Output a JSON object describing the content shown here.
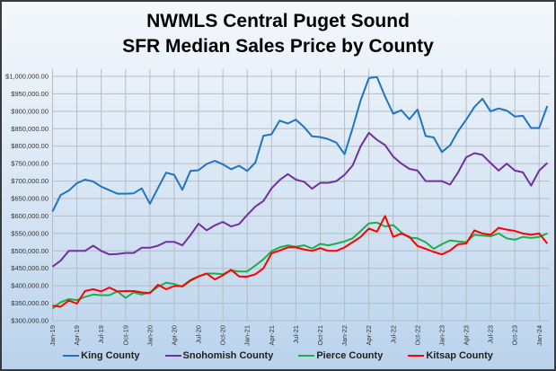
{
  "chart_data": {
    "type": "line",
    "title": [
      "NWMLS Central Puget Sound",
      "SFR Median Sales Price by County"
    ],
    "xlabel": "",
    "ylabel": "",
    "ylim": [
      300000,
      1000000
    ],
    "y_step": 50000,
    "y_tick_labels": [
      "$300,000.00",
      "$350,000.00",
      "$400,000.00",
      "$450,000.00",
      "$500,000.00",
      "$550,000.00",
      "$600,000.00",
      "$650,000.00",
      "$700,000.00",
      "$750,000.00",
      "$800,000.00",
      "$850,000.00",
      "$900,000.00",
      "$950,000.00",
      "$1,000,000.00"
    ],
    "x_start": "Jan-19",
    "x_end": "Feb-24",
    "x_tick_labels": [
      "Jan-19",
      "Apr-19",
      "Jul-19",
      "Oct-19",
      "Jan-20",
      "Apr-20",
      "Jul-20",
      "Oct-20",
      "Jan-21",
      "Apr-21",
      "Jul-21",
      "Oct-21",
      "Jan-22",
      "Apr-22",
      "Jul-22",
      "Oct-22",
      "Jan-23",
      "Apr-23",
      "Jul-23",
      "Oct-23",
      "Jan-24"
    ],
    "grid": true,
    "legend_position": "bottom",
    "series": [
      {
        "name": "King County",
        "color": "#1f74c4",
        "values": [
          613000,
          660000,
          673000,
          694000,
          704000,
          699000,
          684000,
          674000,
          664000,
          664000,
          665000,
          679000,
          635000,
          680000,
          724000,
          718000,
          675000,
          729000,
          731000,
          749000,
          758000,
          748000,
          734000,
          744000,
          729000,
          753000,
          830000,
          834000,
          873000,
          865000,
          876000,
          855000,
          828000,
          826000,
          820000,
          810000,
          777000,
          852000,
          932000,
          995000,
          998000,
          942000,
          893000,
          903000,
          877000,
          905000,
          829000,
          825000,
          783000,
          802000,
          843000,
          876000,
          912000,
          936000,
          900000,
          908000,
          902000,
          885000,
          887000,
          852000,
          852000,
          915000
        ]
      },
      {
        "name": "Snohomish County",
        "color": "#7030a0",
        "values": [
          455000,
          472000,
          500000,
          500000,
          500000,
          515000,
          500000,
          490000,
          491000,
          494000,
          494000,
          509000,
          509000,
          515000,
          526000,
          526000,
          516000,
          545000,
          578000,
          559000,
          573000,
          583000,
          570000,
          577000,
          603000,
          627000,
          643000,
          679000,
          703000,
          720000,
          704000,
          698000,
          678000,
          695000,
          695000,
          700000,
          718000,
          745000,
          800000,
          838000,
          818000,
          803000,
          770000,
          750000,
          735000,
          730000,
          700000,
          700000,
          700000,
          690000,
          725000,
          768000,
          780000,
          775000,
          752000,
          730000,
          750000,
          730000,
          725000,
          687000,
          730000,
          752000
        ]
      },
      {
        "name": "Pierce County",
        "color": "#1ab04c",
        "values": [
          335000,
          353000,
          362000,
          359000,
          368000,
          375000,
          373000,
          373000,
          384000,
          365000,
          381000,
          375000,
          381000,
          397000,
          409000,
          405000,
          397000,
          414000,
          427000,
          435000,
          435000,
          433000,
          444000,
          441000,
          441000,
          458000,
          476000,
          499000,
          510000,
          516000,
          512000,
          516000,
          507000,
          520000,
          516000,
          521000,
          527000,
          536000,
          557000,
          579000,
          581000,
          570000,
          574000,
          553000,
          538000,
          536000,
          525000,
          506000,
          519000,
          530000,
          527000,
          525000,
          546000,
          544000,
          542000,
          550000,
          536000,
          532000,
          540000,
          537000,
          540000,
          550000
        ]
      },
      {
        "name": "Kitsap County",
        "color": "#ff0000",
        "values": [
          343000,
          340000,
          358000,
          349000,
          385000,
          390000,
          384000,
          395000,
          384000,
          385000,
          385000,
          381000,
          379000,
          403000,
          390000,
          399000,
          399000,
          416000,
          427000,
          435000,
          418000,
          430000,
          446000,
          427000,
          426000,
          433000,
          450000,
          493000,
          501000,
          510000,
          510000,
          504000,
          500000,
          508000,
          500000,
          500000,
          510000,
          525000,
          540000,
          564000,
          555000,
          600000,
          540000,
          550000,
          540000,
          514000,
          506000,
          497000,
          490000,
          501000,
          519000,
          521000,
          559000,
          550000,
          546000,
          566000,
          561000,
          557000,
          550000,
          546000,
          550000,
          521000
        ]
      }
    ]
  }
}
